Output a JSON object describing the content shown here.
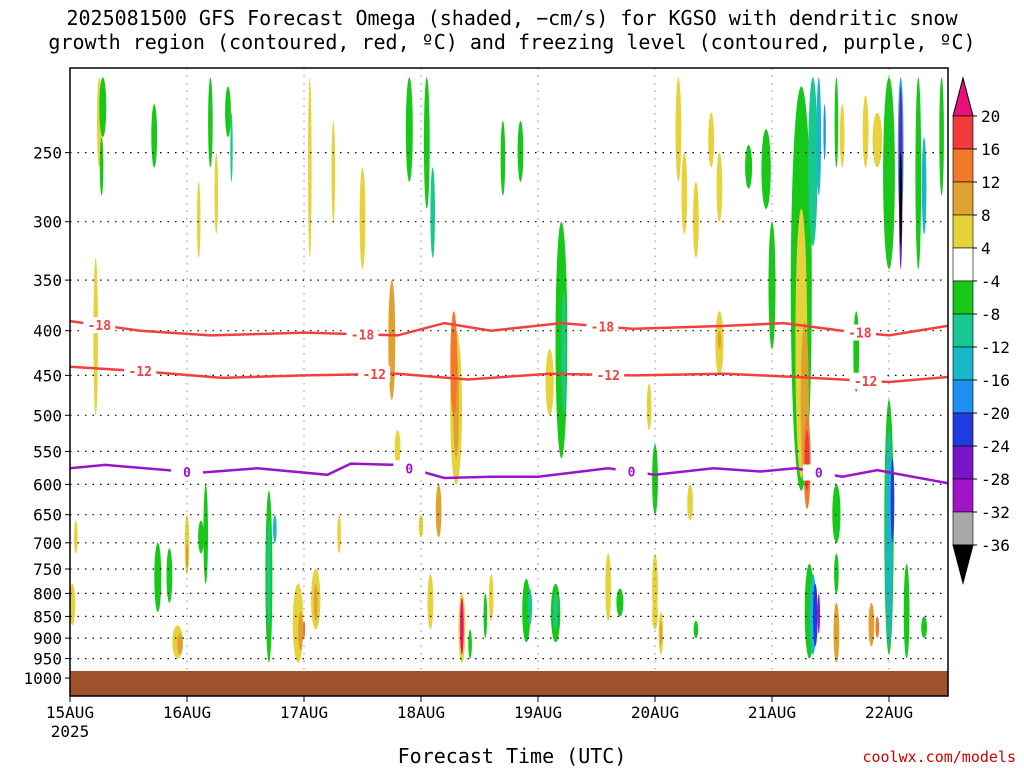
{
  "title": {
    "line1": "2025081500 GFS Forecast Omega (shaded, −cm/s) for KGSO with dendritic snow",
    "line2": "growth region (contoured, red, ºC) and freezing level (contoured, purple, ºC)"
  },
  "credit": "coolwx.com/models",
  "chart_data": {
    "type": "heatmap",
    "xlabel": "Forecast Time (UTC)",
    "x_ticks": [
      "15AUG",
      "16AUG",
      "17AUG",
      "18AUG",
      "19AUG",
      "20AUG",
      "21AUG",
      "22AUG"
    ],
    "x_tick_year": "2025",
    "xlim_days": [
      0,
      7.5
    ],
    "ylabel": "",
    "y_ticks": [
      250,
      300,
      350,
      400,
      450,
      500,
      550,
      600,
      650,
      700,
      750,
      800,
      850,
      900,
      950,
      1000
    ],
    "ylim_hpa": [
      200,
      1025
    ],
    "y_scale": "log-pressure (inverted)",
    "grid": "dotted",
    "colorbar": {
      "labels": [
        "20",
        "16",
        "12",
        "8",
        "4",
        "-4",
        "-8",
        "-12",
        "-16",
        "-20",
        "-24",
        "-28",
        "-32",
        "-36"
      ],
      "colors": [
        "#e8107a",
        "#f23c3c",
        "#f07a2a",
        "#e0a22e",
        "#e6d23a",
        "#ffffff",
        "#18c818",
        "#18c890",
        "#18b8c8",
        "#1e90f0",
        "#1e3ce0",
        "#7a14c8",
        "#a014c8",
        "#a8a8a8",
        "#000000"
      ]
    },
    "ground_color": "#a0522d",
    "contours": [
      {
        "label": "-18",
        "color": "#f04040",
        "points": [
          [
            0.0,
            390
          ],
          [
            0.6,
            400
          ],
          [
            1.2,
            405
          ],
          [
            2.0,
            402
          ],
          [
            2.8,
            405
          ],
          [
            3.2,
            392
          ],
          [
            3.6,
            400
          ],
          [
            4.2,
            392
          ],
          [
            4.8,
            398
          ],
          [
            5.6,
            395
          ],
          [
            6.1,
            392
          ],
          [
            6.6,
            400
          ],
          [
            7.0,
            405
          ],
          [
            7.5,
            395
          ]
        ],
        "labels_at": [
          0.25,
          2.5,
          4.55,
          6.75
        ]
      },
      {
        "label": "-12",
        "color": "#f04040",
        "points": [
          [
            0.0,
            440
          ],
          [
            0.6,
            445
          ],
          [
            1.3,
            453
          ],
          [
            2.0,
            450
          ],
          [
            2.8,
            448
          ],
          [
            3.4,
            455
          ],
          [
            4.1,
            448
          ],
          [
            4.8,
            450
          ],
          [
            5.6,
            448
          ],
          [
            6.2,
            452
          ],
          [
            6.6,
            455
          ],
          [
            7.0,
            458
          ],
          [
            7.5,
            452
          ]
        ],
        "labels_at": [
          0.6,
          2.6,
          4.6,
          6.8
        ]
      },
      {
        "label": "0",
        "color": "#9a14c8",
        "points": [
          [
            0.0,
            575
          ],
          [
            0.3,
            570
          ],
          [
            1.1,
            582
          ],
          [
            1.6,
            575
          ],
          [
            2.2,
            585
          ],
          [
            2.4,
            568
          ],
          [
            2.8,
            570
          ],
          [
            3.2,
            590
          ],
          [
            3.6,
            588
          ],
          [
            4.0,
            588
          ],
          [
            4.6,
            575
          ],
          [
            5.0,
            585
          ],
          [
            5.5,
            575
          ],
          [
            5.9,
            580
          ],
          [
            6.2,
            575
          ],
          [
            6.6,
            588
          ],
          [
            6.9,
            578
          ],
          [
            7.5,
            598
          ]
        ],
        "labels_at": [
          1.0,
          2.9,
          4.8,
          6.4
        ]
      }
    ]
  }
}
